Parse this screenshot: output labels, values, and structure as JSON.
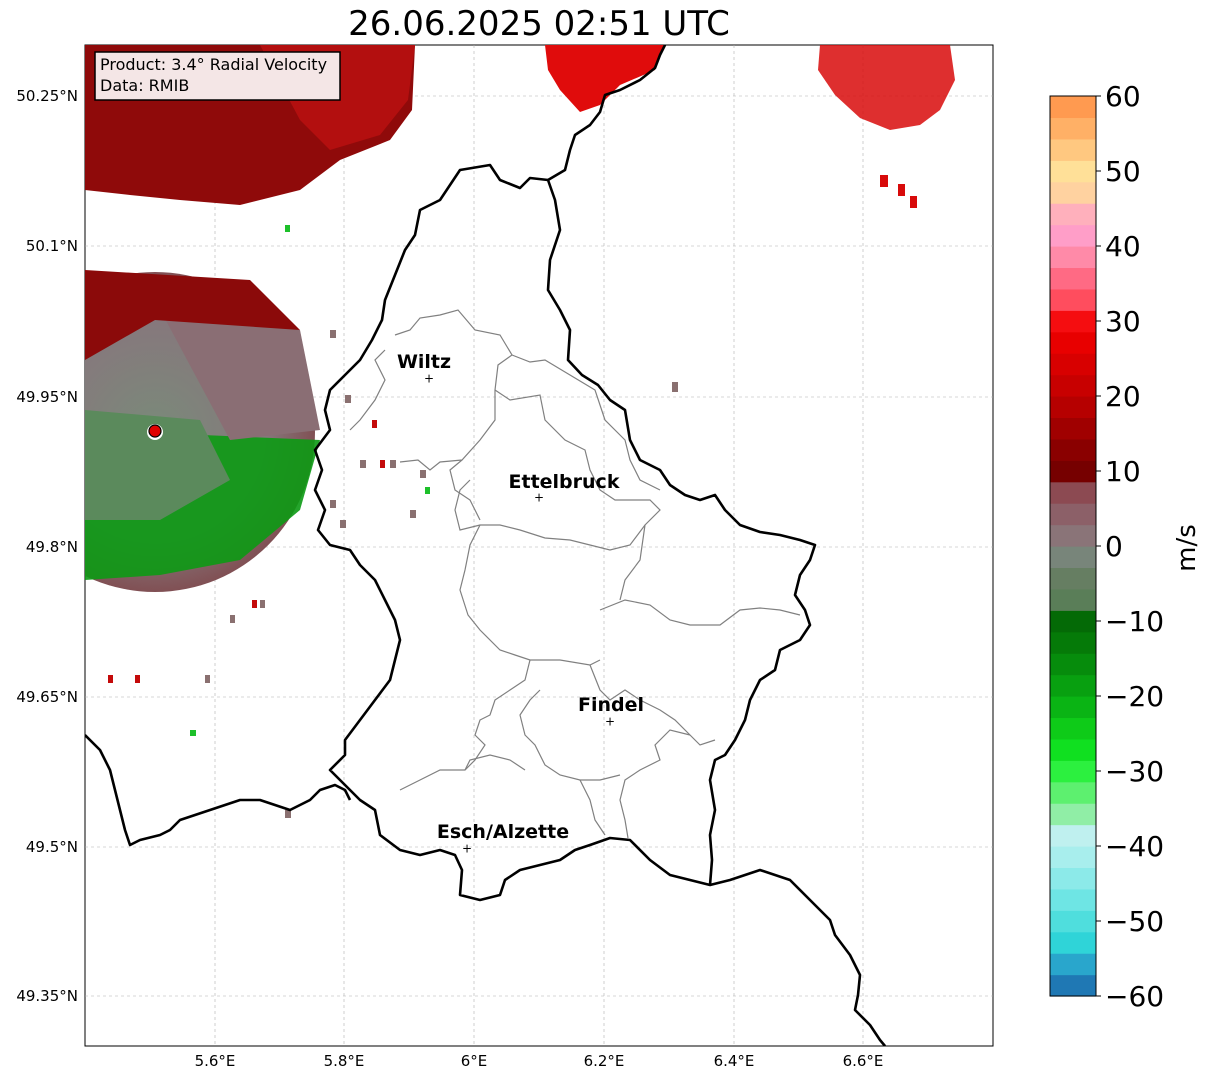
{
  "title": "26.06.2025 02:51 UTC",
  "info_box": {
    "line1": "Product: 3.4° Radial Velocity",
    "line2": "Data: RMIB"
  },
  "axes": {
    "x_ticks": [
      "5.6°E",
      "5.8°E",
      "6°E",
      "6.2°E",
      "6.4°E",
      "6.6°E"
    ],
    "y_ticks": [
      "50.25°N",
      "50.1°N",
      "49.95°N",
      "49.8°N",
      "49.65°N",
      "49.5°N",
      "49.35°N"
    ]
  },
  "cities": [
    {
      "name": "Wiltz"
    },
    {
      "name": "Ettelbruck"
    },
    {
      "name": "Findel"
    },
    {
      "name": "Esch/Alzette"
    }
  ],
  "colorbar": {
    "label": "m/s",
    "ticks": [
      "60",
      "50",
      "40",
      "30",
      "20",
      "10",
      "0",
      "−10",
      "−20",
      "−30",
      "−40",
      "−50",
      "−60"
    ],
    "range": [
      -60,
      60
    ],
    "colors": [
      "#1f78b4",
      "#29a6cc",
      "#2fd4d8",
      "#4fdedd",
      "#6ee5e4",
      "#8ceae9",
      "#a8eeed",
      "#bff0ef",
      "#90eea6",
      "#5df06f",
      "#2cf03f",
      "#10e020",
      "#0ecb18",
      "#0ab414",
      "#08a010",
      "#068c0c",
      "#057a08",
      "#046a06",
      "#5a7e58",
      "#667e62",
      "#78857a",
      "#8a7478",
      "#8c6068",
      "#8c4a52",
      "#760000",
      "#8a0000",
      "#a00000",
      "#b60000",
      "#c80000",
      "#d80000",
      "#e80000",
      "#f50d10",
      "#ff4d5e",
      "#ff6a84",
      "#ff8aa8",
      "#ff9ec8",
      "#ffb0bc",
      "#ffd2a0",
      "#ffe098",
      "#ffc880",
      "#ffb066",
      "#ff9a50"
    ]
  }
}
